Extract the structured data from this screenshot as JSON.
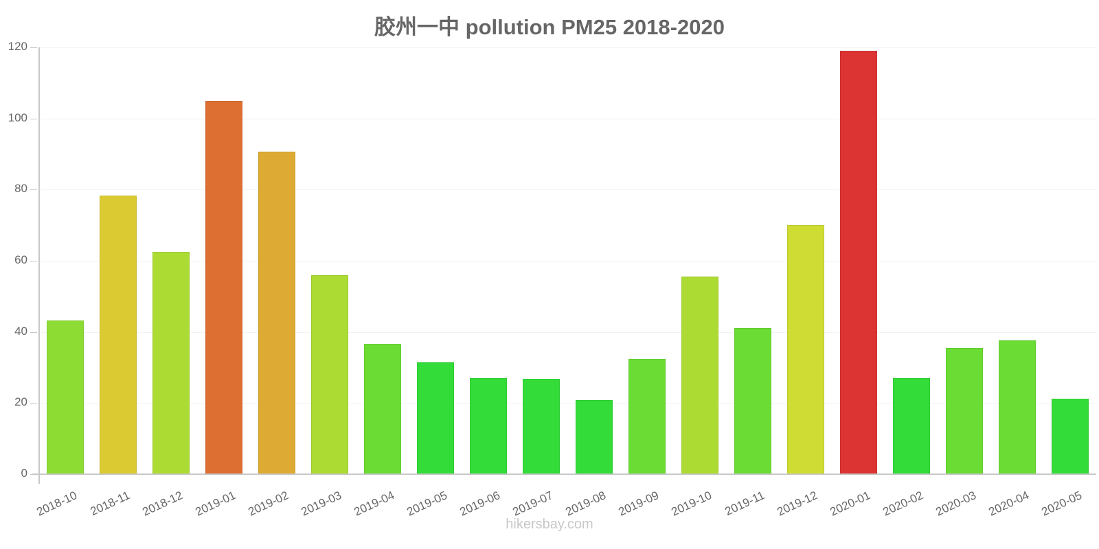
{
  "chart_data": {
    "type": "bar",
    "title": "胶州一中 pollution PM25 2018-2020",
    "xlabel": "",
    "ylabel": "",
    "ylim": [
      0,
      120
    ],
    "yticks": [
      0,
      20,
      40,
      60,
      80,
      100,
      120
    ],
    "grid": true,
    "legend": null,
    "categories": [
      "2018-10",
      "2018-11",
      "2018-12",
      "2019-01",
      "2019-02",
      "2019-03",
      "2019-04",
      "2019-05",
      "2019-06",
      "2019-07",
      "2019-08",
      "2019-09",
      "2019-10",
      "2019-11",
      "2019-12",
      "2020-01",
      "2020-02",
      "2020-03",
      "2020-04",
      "2020-05"
    ],
    "values": [
      43.2,
      78.3,
      62.5,
      105,
      90.7,
      56,
      36.7,
      31.4,
      27,
      26.8,
      20.8,
      32.4,
      55.6,
      41.1,
      70,
      119,
      27,
      35.5,
      37.6,
      21.2
    ],
    "colors": [
      "#8ddc33",
      "#dcca33",
      "#acdc33",
      "#dd6f33",
      "#ddab33",
      "#acdc33",
      "#6bdc33",
      "#33dc38",
      "#33dc38",
      "#33dc38",
      "#33dc38",
      "#6bdc33",
      "#acdc33",
      "#6bdc33",
      "#cedc33",
      "#dc3333",
      "#33dc38",
      "#6bdc33",
      "#6bdc33",
      "#33dc38"
    ]
  },
  "watermark": "hikersbay.com"
}
